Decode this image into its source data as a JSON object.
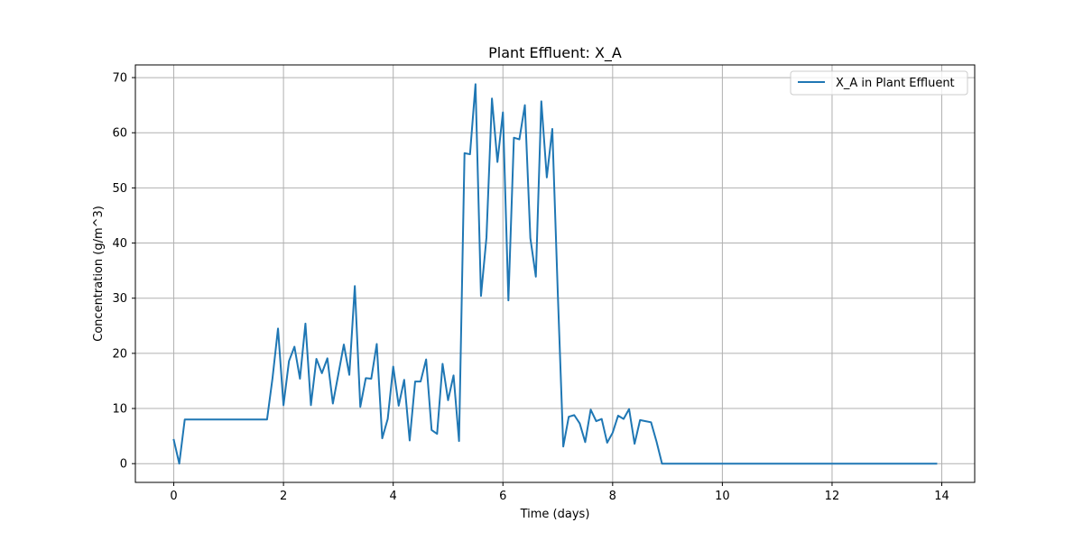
{
  "chart_data": {
    "type": "line",
    "title": "Plant Effluent: X_A",
    "xlabel": "Time (days)",
    "ylabel": "Concentration (g/m^3)",
    "xlim": [
      -0.7,
      14.6
    ],
    "ylim": [
      -3.4,
      72.3
    ],
    "xticks": [
      0,
      2,
      4,
      6,
      8,
      10,
      12,
      14
    ],
    "yticks": [
      0,
      10,
      20,
      30,
      40,
      50,
      60,
      70
    ],
    "grid": true,
    "legend_position": "top-right",
    "series": [
      {
        "name": "X_A in Plant Effluent",
        "color": "#1f77b4",
        "x": [
          0.0,
          0.1,
          0.2,
          0.3,
          0.4,
          0.5,
          0.6,
          0.7,
          0.8,
          0.9,
          1.0,
          1.1,
          1.2,
          1.3,
          1.4,
          1.5,
          1.6,
          1.7,
          1.8,
          1.9,
          2.0,
          2.1,
          2.2,
          2.3,
          2.4,
          2.5,
          2.6,
          2.7,
          2.8,
          2.9,
          3.0,
          3.1,
          3.2,
          3.3,
          3.4,
          3.5,
          3.6,
          3.7,
          3.8,
          3.9,
          4.0,
          4.1,
          4.2,
          4.3,
          4.4,
          4.5,
          4.6,
          4.7,
          4.8,
          4.9,
          5.0,
          5.1,
          5.2,
          5.3,
          5.4,
          5.5,
          5.6,
          5.7,
          5.8,
          5.9,
          6.0,
          6.1,
          6.2,
          6.3,
          6.4,
          6.5,
          6.6,
          6.7,
          6.8,
          6.9,
          7.0,
          7.1,
          7.2,
          7.3,
          7.4,
          7.5,
          7.6,
          7.7,
          7.8,
          7.9,
          8.0,
          8.1,
          8.2,
          8.3,
          8.4,
          8.5,
          8.6,
          8.7,
          8.8,
          8.9,
          9.0,
          10.0,
          11.0,
          12.0,
          13.0,
          13.9
        ],
        "y": [
          4.3,
          0.0,
          8.0,
          8.0,
          8.0,
          8.0,
          8.0,
          8.0,
          8.0,
          8.0,
          8.0,
          8.0,
          8.0,
          8.0,
          8.0,
          8.0,
          8.0,
          8.0,
          15.5,
          24.5,
          10.6,
          18.6,
          21.2,
          15.4,
          25.4,
          10.6,
          19.0,
          16.4,
          19.1,
          10.9,
          16.2,
          21.6,
          16.1,
          32.2,
          10.3,
          15.5,
          15.4,
          21.7,
          4.6,
          8.1,
          17.6,
          10.5,
          15.2,
          4.2,
          14.9,
          14.9,
          18.9,
          6.1,
          5.4,
          18.1,
          11.5,
          16.0,
          4.1,
          56.3,
          56.1,
          68.8,
          30.4,
          41.0,
          66.2,
          54.7,
          63.7,
          29.6,
          59.1,
          58.8,
          65.0,
          40.9,
          33.9,
          65.7,
          51.9,
          60.7,
          31.0,
          3.1,
          8.5,
          8.8,
          7.3,
          3.9,
          9.8,
          7.7,
          8.1,
          3.8,
          5.6,
          8.7,
          8.1,
          9.9,
          3.6,
          7.9,
          7.7,
          7.5,
          4.0,
          0.0,
          0.0,
          0.0,
          0.0,
          0.0,
          0.0,
          0.0
        ]
      }
    ]
  }
}
